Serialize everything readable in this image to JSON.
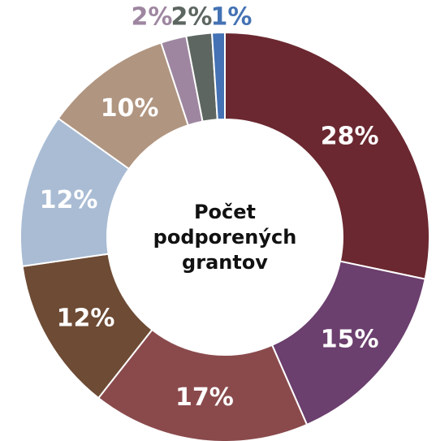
{
  "chart_data": {
    "type": "donut",
    "title": "Počet podporených grantov",
    "values": [
      28,
      15,
      17,
      12,
      12,
      10,
      2,
      2,
      1
    ],
    "value_labels": [
      "28%",
      "15%",
      "17%",
      "12%",
      "12%",
      "10%",
      "2%",
      "2%",
      "1%"
    ],
    "colors": [
      "#6b2830",
      "#6b3f6e",
      "#8a4a4c",
      "#6e4b35",
      "#a9bcd4",
      "#b09580",
      "#9e86a0",
      "#5d6660",
      "#4472b4"
    ]
  }
}
